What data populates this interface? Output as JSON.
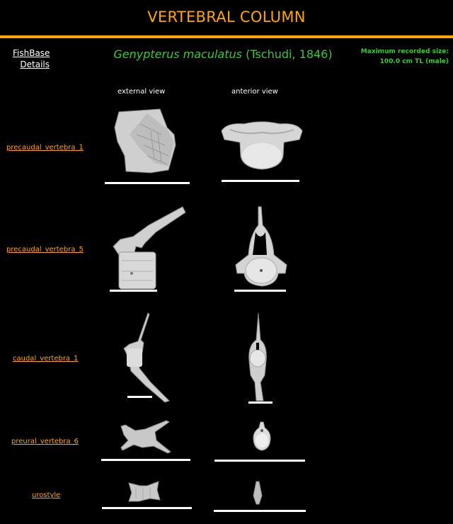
{
  "title": "VERTEBRAL COLUMN",
  "fishbase": {
    "line1": "FishBase",
    "line2": "Details"
  },
  "species": {
    "genus_species": "Genypterus maculatus",
    "author": "(Tschudi, 1846)"
  },
  "max_size": {
    "label": "Maximum recorded size:",
    "value": "100.0 cm TL (male)"
  },
  "columns": {
    "external": "external view",
    "anterior": "anterior view"
  },
  "rows": [
    {
      "label": "precaudal_vertebra_1"
    },
    {
      "label": "precaudal_vertebra_5"
    },
    {
      "label": "caudal_vertebra_1"
    },
    {
      "label": "preural_vertebra_6"
    },
    {
      "label": "urostyle"
    }
  ],
  "colors": {
    "accent": "#ffa500",
    "species": "#33cc33",
    "background": "#000000"
  }
}
